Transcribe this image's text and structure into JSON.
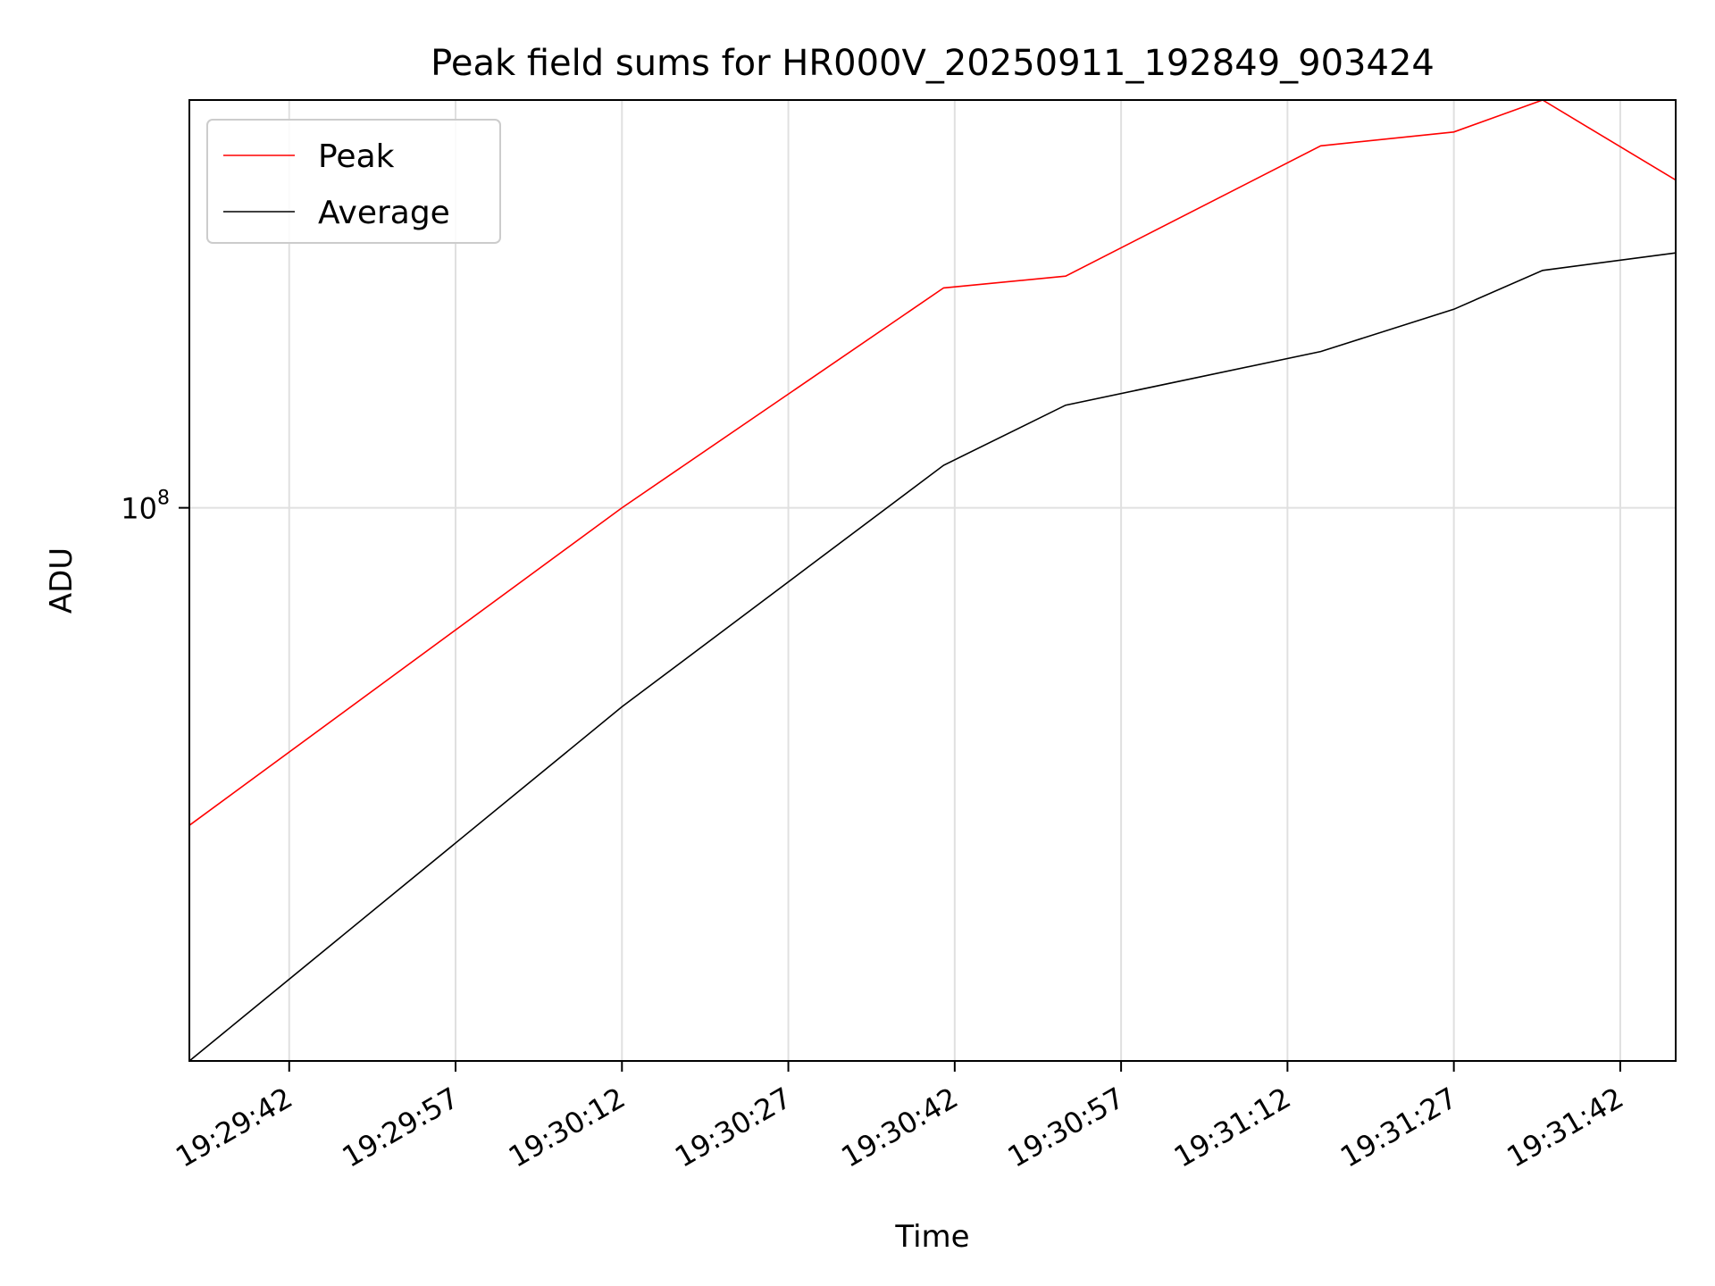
{
  "chart_data": {
    "type": "line",
    "title": "Peak field sums for HR000V_20250911_192849_903424",
    "xlabel": "Time",
    "ylabel": "ADU",
    "y_scale": "log",
    "ylim": [
      13000000,
      450000000
    ],
    "xlim": [
      "19:29:33",
      "19:31:47"
    ],
    "x_ticks": [
      "19:29:42",
      "19:29:57",
      "19:30:12",
      "19:30:27",
      "19:30:42",
      "19:30:57",
      "19:31:12",
      "19:31:27",
      "19:31:42"
    ],
    "y_ticks": [
      {
        "value": 100000000,
        "base": "10",
        "exp": "8"
      }
    ],
    "grid": true,
    "legend": "upper-left",
    "x": [
      "19:29:33",
      "19:30:12",
      "19:30:41",
      "19:30:52",
      "19:31:15",
      "19:31:27",
      "19:31:35",
      "19:31:47"
    ],
    "series": [
      {
        "name": "Peak",
        "color": "#ff0000",
        "values": [
          31000000,
          100000000,
          225000000,
          235000000,
          380000000,
          400000000,
          450000000,
          335000000
        ]
      },
      {
        "name": "Average",
        "color": "#000000",
        "values": [
          13000000,
          48000000,
          117000000,
          146000000,
          178000000,
          208000000,
          240000000,
          256000000
        ]
      }
    ]
  }
}
